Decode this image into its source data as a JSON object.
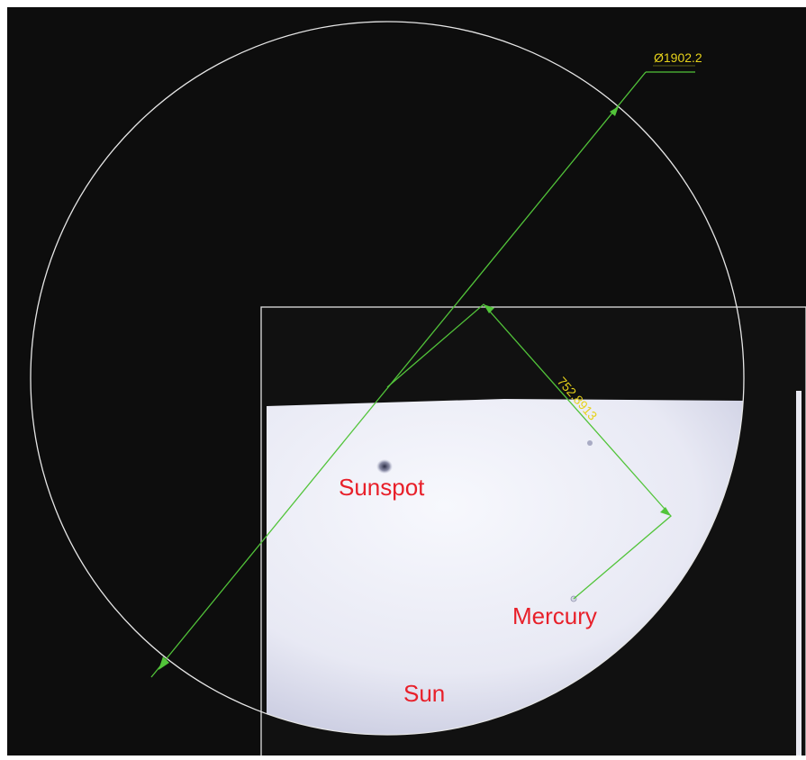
{
  "dimensions": {
    "diameter_label": "Ø1902.2",
    "distance_label": "752.8913"
  },
  "labels": {
    "sunspot": "Sunspot",
    "mercury": "Mercury",
    "sun": "Sun"
  },
  "colors": {
    "background": "#0d0d0d",
    "circle_outline": "#e6e6e6",
    "dimension_line": "#52c43a",
    "dimension_text": "#e6d21a",
    "label_text": "#e8202a",
    "sun_disk_light": "#f3f4fb",
    "sun_disk_shadow": "#aeb0c9",
    "frame": "#e0e0e0"
  }
}
